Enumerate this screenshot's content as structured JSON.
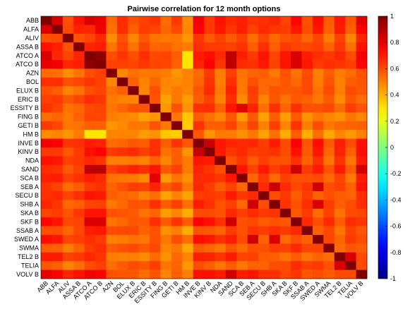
{
  "chart_data": {
    "type": "heatmap",
    "title": "Pairwise correlation for 12 month options",
    "xlabel": "",
    "ylabel": "",
    "labels": [
      "ABB",
      "ALFA",
      "ALIV",
      "ASSA B",
      "ATCO A",
      "ATCO B",
      "AZN",
      "BOL",
      "ELUX B",
      "ERIC B",
      "ESSITY B",
      "FING B",
      "GETI B",
      "HM B",
      "INVE B",
      "KINV B",
      "NDA",
      "SAND",
      "SCA B",
      "SEB A",
      "SECU B",
      "SHB A",
      "SKA B",
      "SKF B",
      "SSAB A",
      "SWED A",
      "SWMA",
      "TEL2 B",
      "TELIA",
      "VOLV B"
    ],
    "clim": [
      -1,
      1
    ],
    "colorbar_ticks": [
      -1,
      -0.8,
      -0.6,
      -0.4,
      -0.2,
      0,
      0.2,
      0.4,
      0.6,
      0.8,
      1
    ],
    "colormap": "jet",
    "grid": false,
    "diagonal": 1.0,
    "row_base": [
      0.72,
      0.7,
      0.55,
      0.62,
      0.74,
      0.74,
      0.5,
      0.52,
      0.55,
      0.5,
      0.6,
      0.42,
      0.52,
      0.38,
      0.72,
      0.68,
      0.6,
      0.72,
      0.58,
      0.64,
      0.58,
      0.62,
      0.58,
      0.68,
      0.58,
      0.62,
      0.55,
      0.58,
      0.55,
      0.7
    ],
    "pair_overrides": [
      {
        "pair": [
          "ATCO A",
          "ATCO B"
        ],
        "value": 0.97
      },
      {
        "pair": [
          "ATCO A",
          "SAND"
        ],
        "value": 0.88
      },
      {
        "pair": [
          "ATCO B",
          "SAND"
        ],
        "value": 0.88
      },
      {
        "pair": [
          "SEB A",
          "SHB A"
        ],
        "value": 0.85
      },
      {
        "pair": [
          "SEB A",
          "SWED A"
        ],
        "value": 0.84
      },
      {
        "pair": [
          "SHB A",
          "SWED A"
        ],
        "value": 0.82
      },
      {
        "pair": [
          "INVE B",
          "KINV B"
        ],
        "value": 0.86
      },
      {
        "pair": [
          "ABB",
          "ALFA"
        ],
        "value": 0.82
      },
      {
        "pair": [
          "ABB",
          "ATCO A"
        ],
        "value": 0.82
      },
      {
        "pair": [
          "ABB",
          "VOLV B"
        ],
        "value": 0.8
      },
      {
        "pair": [
          "SAND",
          "SKF B"
        ],
        "value": 0.85
      },
      {
        "pair": [
          "SAND",
          "VOLV B"
        ],
        "value": 0.84
      },
      {
        "pair": [
          "ATCO A",
          "SKF B"
        ],
        "value": 0.82
      },
      {
        "pair": [
          "ATCO B",
          "SKF B"
        ],
        "value": 0.82
      },
      {
        "pair": [
          "SCA B",
          "ESSITY B"
        ],
        "value": 0.8
      },
      {
        "pair": [
          "TEL2 B",
          "TELIA"
        ],
        "value": 0.82
      },
      {
        "pair": [
          "SECU B",
          "SHB A"
        ],
        "value": 0.6
      },
      {
        "pair": [
          "HM B",
          "ATCO A"
        ],
        "value": 0.3
      },
      {
        "pair": [
          "HM B",
          "ATCO B"
        ],
        "value": 0.3
      },
      {
        "pair": [
          "GETI B",
          "HM B"
        ],
        "value": 0.35
      }
    ]
  }
}
